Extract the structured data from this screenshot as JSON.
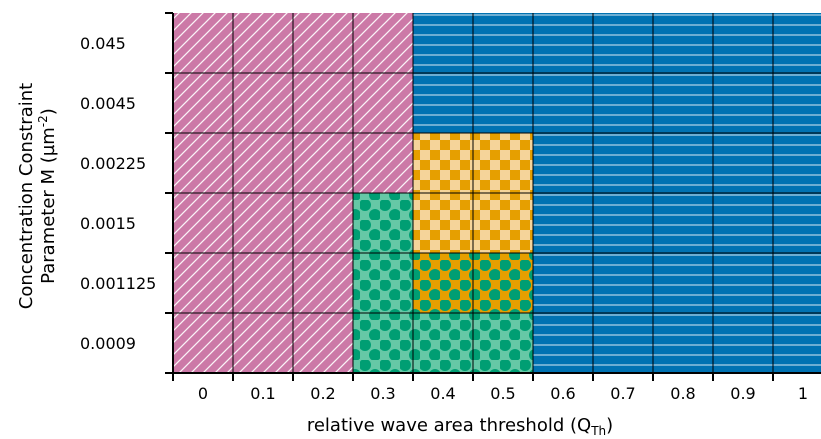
{
  "chart_data": {
    "type": "heatmap",
    "xlabel": "relative wave area threshold (Q",
    "xlabel_sub": "Th",
    "xlabel_end": ")",
    "ylabel_line1": "Concentration Constraint",
    "ylabel_line2": "Parameter M (µm",
    "ylabel_sup": "-2",
    "ylabel_end": ")",
    "x": [
      "0",
      "0.1",
      "0.2",
      "0.3",
      "0.4",
      "0.5",
      "0.6",
      "0.7",
      "0.8",
      "0.9",
      "1"
    ],
    "y": [
      "0.045",
      "0.0045",
      "0.00225",
      "0.0015",
      "0.001125",
      "0.0009"
    ],
    "grid": [
      [
        "C1",
        "C1",
        "C1",
        "C1",
        "C2",
        "C2",
        "C2",
        "C2",
        "C2",
        "C2",
        "C2"
      ],
      [
        "C1",
        "C1",
        "C1",
        "C1",
        "C2",
        "C2",
        "C2",
        "C2",
        "C2",
        "C2",
        "C2"
      ],
      [
        "C1",
        "C1",
        "C1",
        "C1",
        "C3",
        "C3",
        "C2",
        "C2",
        "C2",
        "C2",
        "C2"
      ],
      [
        "C1",
        "C1",
        "C1",
        "C4",
        "C3",
        "C3",
        "C2",
        "C2",
        "C2",
        "C2",
        "C2"
      ],
      [
        "C1",
        "C1",
        "C1",
        "C4",
        "C5",
        "C5",
        "C2",
        "C2",
        "C2",
        "C2",
        "C2"
      ],
      [
        "C1",
        "C1",
        "C1",
        "C4",
        "C4",
        "C4",
        "C2",
        "C2",
        "C2",
        "C2",
        "C2"
      ]
    ],
    "categories": {
      "C1": {
        "color": "#cc79a7",
        "pattern": "diagonal-hatch"
      },
      "C2": {
        "color": "#0072b2",
        "pattern": "horizontal-lines"
      },
      "C3": {
        "color": "#e69f00",
        "pattern": "checker"
      },
      "C4": {
        "color": "#66c8a6",
        "pattern": "dots",
        "dot_color": "#009e73"
      },
      "C5": {
        "color": "#e69f00",
        "pattern": "dots",
        "dot_color": "#009e73"
      }
    }
  }
}
